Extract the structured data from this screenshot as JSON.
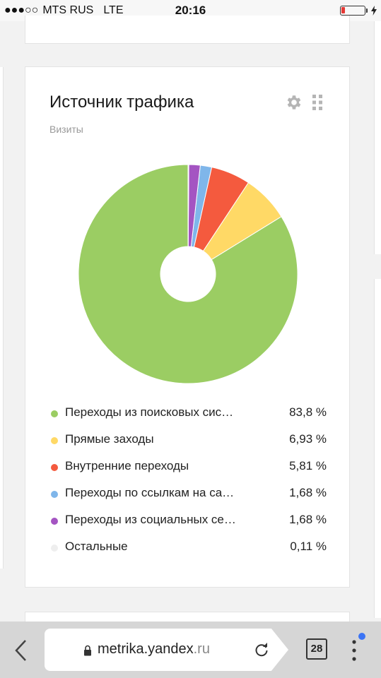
{
  "status_bar": {
    "signal": "●●●○○",
    "carrier": "MTS RUS",
    "network": "LTE",
    "time": "20:16",
    "battery_level": 0.15
  },
  "widget": {
    "title": "Источник трафика",
    "subtitle": "Визиты",
    "settings_icon": "gear-icon",
    "drag_icon": "drag-handle-icon"
  },
  "chart_data": {
    "type": "pie",
    "donut": true,
    "legend_position": "bottom",
    "categories": [
      "Переходы из поисковых сис…",
      "Прямые заходы",
      "Внутренние переходы",
      "Переходы по ссылкам на са…",
      "Переходы из социальных се…",
      "Остальные"
    ],
    "values": [
      83.8,
      6.93,
      5.81,
      1.68,
      1.68,
      0.11
    ],
    "value_labels": [
      "83,8 %",
      "6,93 %",
      "5,81 %",
      "1,68 %",
      "1,68 %",
      "0,11 %"
    ],
    "colors": [
      "#9bcd63",
      "#ffd966",
      "#f45a3e",
      "#7fb6ea",
      "#a454c2",
      "#eeeeee"
    ]
  },
  "browser": {
    "url_main": "metrika.yandex",
    "url_tld": ".ru",
    "tabs_count": "28"
  }
}
